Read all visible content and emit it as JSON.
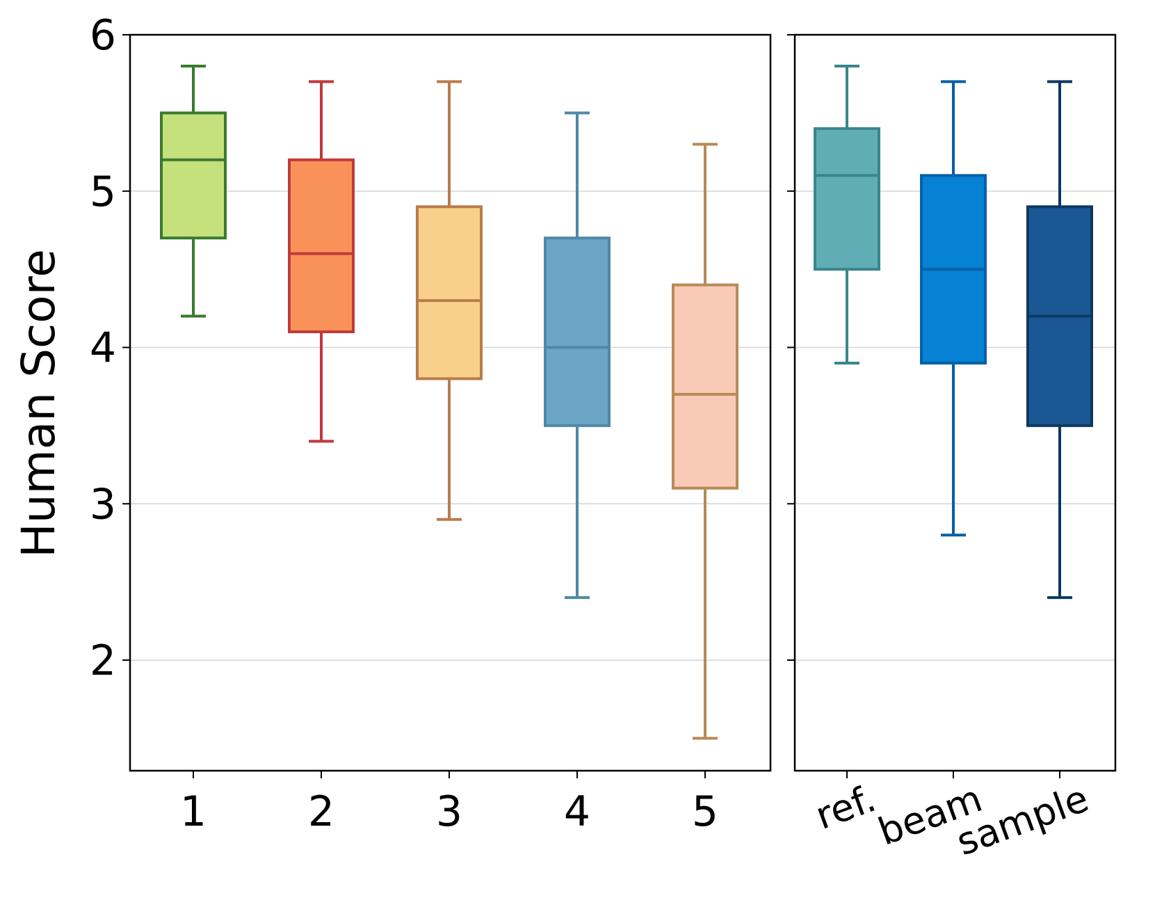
{
  "chart_data": {
    "type": "box",
    "ylabel": "Human Score",
    "ylim": [
      1.3,
      6.0
    ],
    "yticks": [
      2,
      3,
      4,
      5,
      6
    ],
    "grid": "horizontal",
    "panels": [
      {
        "name": "left",
        "categories": [
          "1",
          "2",
          "3",
          "4",
          "5"
        ],
        "boxes": [
          {
            "label": "1",
            "whisker_low": 4.2,
            "q1": 4.7,
            "median": 5.2,
            "q3": 5.5,
            "whisker_high": 5.8,
            "fill": "#c4e17c",
            "edge": "#3a7a2e"
          },
          {
            "label": "2",
            "whisker_low": 3.4,
            "q1": 4.1,
            "median": 4.6,
            "q3": 5.2,
            "whisker_high": 5.7,
            "fill": "#f99258",
            "edge": "#c0393b"
          },
          {
            "label": "3",
            "whisker_low": 2.9,
            "q1": 3.8,
            "median": 4.3,
            "q3": 4.9,
            "whisker_high": 5.7,
            "fill": "#f9d08a",
            "edge": "#b97b4c"
          },
          {
            "label": "4",
            "whisker_low": 2.4,
            "q1": 3.5,
            "median": 4.0,
            "q3": 4.7,
            "whisker_high": 5.5,
            "fill": "#6ba6c7",
            "edge": "#4f88a8"
          },
          {
            "label": "5",
            "whisker_low": 1.5,
            "q1": 3.1,
            "median": 3.7,
            "q3": 4.4,
            "whisker_high": 5.3,
            "fill": "#f9cbb7",
            "edge": "#b98a56"
          }
        ]
      },
      {
        "name": "right",
        "categories": [
          "ref.",
          "beam",
          "sample"
        ],
        "boxes": [
          {
            "label": "ref.",
            "whisker_low": 3.9,
            "q1": 4.5,
            "median": 5.1,
            "q3": 5.4,
            "whisker_high": 5.8,
            "fill": "#60adb5",
            "edge": "#3a868d"
          },
          {
            "label": "beam",
            "whisker_low": 2.8,
            "q1": 3.9,
            "median": 4.5,
            "q3": 5.1,
            "whisker_high": 5.7,
            "fill": "#0582d3",
            "edge": "#0560a8"
          },
          {
            "label": "sample",
            "whisker_low": 2.4,
            "q1": 3.5,
            "median": 4.2,
            "q3": 4.9,
            "whisker_high": 5.7,
            "fill": "#1b5793",
            "edge": "#0e3862"
          }
        ]
      }
    ]
  }
}
